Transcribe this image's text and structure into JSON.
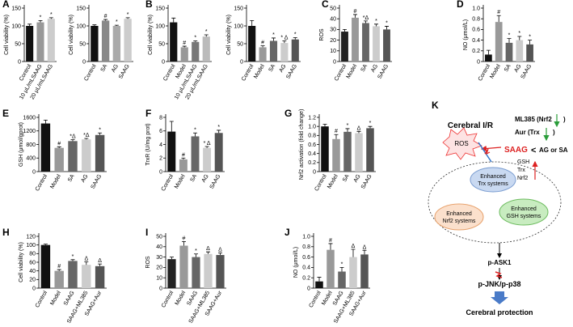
{
  "chart_data": [
    {
      "type": "bar",
      "panel": "A",
      "ylabel": "Cell viability (%)",
      "categories": [
        "Control",
        "10 μL/mLSAAG",
        "20 μL/mLSAAG"
      ],
      "values": [
        100,
        110,
        120
      ],
      "errors": [
        5,
        5,
        3
      ],
      "markers": [
        null,
        "*",
        "*"
      ],
      "colors": [
        "#111111",
        "#999999",
        "#cccccc"
      ],
      "ylim": [
        0,
        150
      ],
      "yticks": [
        0,
        50,
        100,
        150
      ]
    },
    {
      "type": "bar",
      "ylabel": "Cell viability (%)",
      "categories": [
        "Control",
        "SA",
        "AG",
        "SAAG"
      ],
      "values": [
        100,
        115,
        100,
        120
      ],
      "errors": [
        3,
        3,
        2,
        3
      ],
      "markers": [
        null,
        "#",
        "*",
        "*"
      ],
      "colors": [
        "#111111",
        "#888888",
        "#aaaaaa",
        "#cccccc"
      ],
      "ylim": [
        0,
        150
      ],
      "yticks": [
        0,
        50,
        100,
        150
      ]
    },
    {
      "type": "bar",
      "panel": "B",
      "ylabel": "Cell viability (%)",
      "categories": [
        "Control",
        "Model",
        "10 μL/mLSAAG",
        "20 μL/mLSAAG"
      ],
      "values": [
        110,
        40,
        55,
        70
      ],
      "errors": [
        12,
        3,
        3,
        5
      ],
      "markers": [
        null,
        "#",
        "*",
        "*"
      ],
      "colors": [
        "#111111",
        "#999999",
        "#777777",
        "#bbbbbb"
      ],
      "ylim": [
        0,
        150
      ],
      "yticks": [
        0,
        50,
        100,
        150
      ]
    },
    {
      "type": "bar",
      "ylabel": "Cell viability (%)",
      "categories": [
        "Control",
        "Model",
        "SA",
        "AG",
        "SAAG"
      ],
      "values": [
        100,
        40,
        58,
        52,
        62
      ],
      "errors": [
        15,
        4,
        8,
        6,
        5
      ],
      "markers": [
        null,
        "#",
        "*",
        "* Δ",
        "*"
      ],
      "colors": [
        "#111111",
        "#999999",
        "#666666",
        "#cccccc",
        "#555555"
      ],
      "ylim": [
        0,
        150
      ],
      "yticks": [
        0,
        50,
        100,
        150
      ]
    },
    {
      "type": "bar",
      "panel": "C",
      "ylabel": "ROS",
      "categories": [
        "Control",
        "Model",
        "SA",
        "AG",
        "SAAG"
      ],
      "values": [
        28,
        41,
        36,
        33,
        30
      ],
      "errors": [
        2,
        3,
        2,
        2,
        3
      ],
      "markers": [
        null,
        "#",
        "*Δ",
        "*",
        "*"
      ],
      "colors": [
        "#222222",
        "#999999",
        "#666666",
        "#cccccc",
        "#555555"
      ],
      "ylim": [
        0,
        50
      ],
      "yticks": [
        0,
        10,
        20,
        30,
        40,
        50
      ]
    },
    {
      "type": "bar",
      "panel": "D",
      "ylabel": "NO (μmol/L)",
      "categories": [
        "Control",
        "Model",
        "SA",
        "AG",
        "SAAG"
      ],
      "values": [
        0.13,
        0.74,
        0.35,
        0.4,
        0.32
      ],
      "errors": [
        0.08,
        0.12,
        0.08,
        0.07,
        0.08
      ],
      "markers": [
        null,
        "#",
        "*",
        "*",
        "*"
      ],
      "colors": [
        "#111111",
        "#999999",
        "#666666",
        "#cccccc",
        "#555555"
      ],
      "ylim": [
        0,
        1
      ],
      "yticks": [
        0,
        0.2,
        0.4,
        0.6,
        0.8,
        {
          "value": 1,
          "label": "1.0"
        }
      ]
    },
    {
      "type": "bar",
      "panel": "E",
      "ylabel": "GSH (μmol/gprot)",
      "categories": [
        "Control",
        "Model",
        "SA",
        "AG",
        "SAAG"
      ],
      "values": [
        1420,
        700,
        900,
        950,
        1080
      ],
      "errors": [
        100,
        30,
        40,
        30,
        60
      ],
      "markers": [
        null,
        "#",
        "*Δ",
        "*Δ",
        "*"
      ],
      "colors": [
        "#111111",
        "#999999",
        "#666666",
        "#cccccc",
        "#555555"
      ],
      "ylim": [
        0,
        1600
      ],
      "yticks": [
        0,
        400,
        800,
        1200,
        1600
      ]
    },
    {
      "type": "bar",
      "panel": "F",
      "ylabel": "TrxR (U/mg prot)",
      "categories": [
        "Control",
        "Model",
        "SA",
        "AG",
        "SAAG"
      ],
      "values": [
        5.9,
        1.8,
        5.2,
        3.5,
        5.7
      ],
      "errors": [
        1.5,
        0.2,
        0.5,
        0.2,
        0.4
      ],
      "markers": [
        null,
        "#",
        "*",
        "* Δ",
        "*"
      ],
      "colors": [
        "#111111",
        "#999999",
        "#666666",
        "#cccccc",
        "#555555"
      ],
      "ylim": [
        0,
        8
      ],
      "yticks": [
        0,
        2,
        4,
        6,
        8
      ]
    },
    {
      "type": "bar",
      "panel": "G",
      "ylabel": "Nrf2 activation (fold change)",
      "categories": [
        "Control",
        "Model",
        "SA",
        "AG",
        "SAAG"
      ],
      "values": [
        1.0,
        0.72,
        0.88,
        0.85,
        0.96
      ],
      "errors": [
        0.05,
        0.1,
        0.07,
        0.04,
        0.04
      ],
      "markers": [
        null,
        "#",
        "*",
        "Δ",
        "*"
      ],
      "colors": [
        "#111111",
        "#999999",
        "#666666",
        "#cccccc",
        "#555555"
      ],
      "ylim": [
        0,
        1.2
      ],
      "yticks": [
        0,
        0.2,
        0.4,
        0.6,
        0.8,
        {
          "value": 1,
          "label": "1.0"
        },
        1.2
      ]
    },
    {
      "type": "bar",
      "panel": "H",
      "ylabel": "Cell viability (%)",
      "categories": [
        "Control",
        "Model",
        "SAAG",
        "SAAG+ML385",
        "SAAG+Aur"
      ],
      "values": [
        100,
        40,
        63,
        54,
        51
      ],
      "errors": [
        2,
        3,
        3,
        7,
        5
      ],
      "markers": [
        null,
        "#",
        "*",
        "Δ",
        "Δ"
      ],
      "colors": [
        "#111111",
        "#999999",
        "#666666",
        "#cccccc",
        "#555555"
      ],
      "ylim": [
        0,
        120
      ],
      "yticks": [
        0,
        20,
        40,
        60,
        80,
        100,
        120
      ]
    },
    {
      "type": "bar",
      "panel": "I",
      "ylabel": "ROS",
      "categories": [
        "Control",
        "Model",
        "SAAG",
        "SAAG+ML385",
        "SAAG+Aur"
      ],
      "values": [
        28,
        41,
        30,
        33,
        32
      ],
      "errors": [
        2,
        4,
        3,
        2,
        2
      ],
      "markers": [
        null,
        "#",
        "*",
        "Δ",
        "Δ"
      ],
      "colors": [
        "#222222",
        "#999999",
        "#666666",
        "#cccccc",
        "#555555"
      ],
      "ylim": [
        0,
        50
      ],
      "yticks": [
        0,
        10,
        20,
        30,
        40,
        50
      ]
    },
    {
      "type": "bar",
      "panel": "J",
      "ylabel": "NO (μmol/L)",
      "categories": [
        "Control",
        "Model",
        "SAAG",
        "SAAG+ML385",
        "SAAG+Aur"
      ],
      "values": [
        0.13,
        0.74,
        0.32,
        0.6,
        0.65
      ],
      "errors": [
        0.08,
        0.12,
        0.08,
        0.15,
        0.08
      ],
      "markers": [
        null,
        "#",
        "*",
        "Δ",
        "Δ"
      ],
      "colors": [
        "#111111",
        "#999999",
        "#666666",
        "#cccccc",
        "#555555"
      ],
      "ylim": [
        0,
        1
      ],
      "yticks": [
        0,
        0.2,
        0.4,
        0.6,
        0.8,
        {
          "value": 1,
          "label": "1.0"
        }
      ]
    }
  ],
  "diagram": {
    "panel": "K",
    "injury": "Cerebral I/R",
    "ros": "ROS",
    "ml385": "ML385 (Nrf2",
    "aur": "Aur (Trx",
    "close": ")",
    "saag": "SAAG",
    "lt": "<",
    "compare": "AG or SA",
    "gsh": "GSH",
    "trx": "Trx",
    "nrf2": "Nrf2",
    "trx_sys": [
      "Enhanced",
      "Trx systems"
    ],
    "nrf2_sys": [
      "Enhanced",
      "Nrf2 systems"
    ],
    "gsh_sys": [
      "Enhanced",
      "GSH systems"
    ],
    "ask1": "p-ASK1",
    "jnk": "p-JNK/p-p38",
    "outcome": "Cerebral protection"
  }
}
